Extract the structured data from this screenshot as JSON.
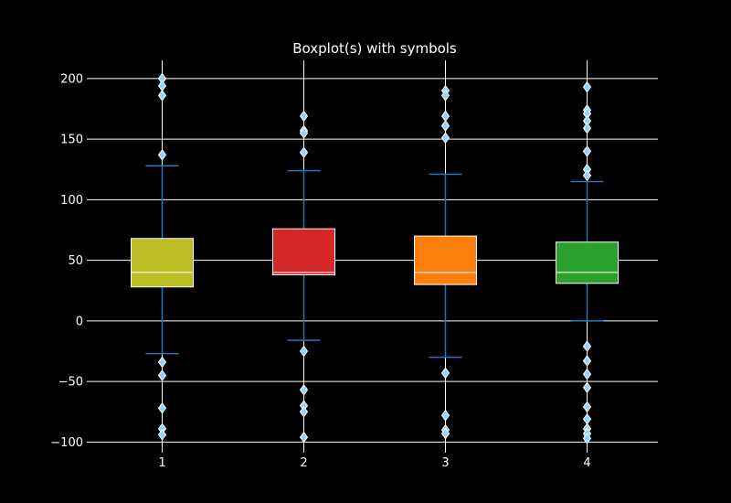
{
  "chart_data": {
    "type": "box",
    "title": "Boxplot(s) with symbols",
    "xlabel": "",
    "ylabel": "",
    "categories": [
      "1",
      "2",
      "3",
      "4"
    ],
    "ylim": [
      -105,
      215
    ],
    "xlim": [
      0.5,
      4.5
    ],
    "yticks": [
      -100,
      -50,
      0,
      50,
      100,
      150,
      200
    ],
    "ytick_labels": [
      "−100",
      "−50",
      "0",
      "50",
      "100",
      "150",
      "200"
    ],
    "grid": "horizontal",
    "series": [
      {
        "category": "1",
        "color": "#bcbd22",
        "q1": 28,
        "median": 40,
        "q3": 68,
        "whisker_low": -27,
        "whisker_high": 128,
        "fliers": [
          200,
          194,
          186,
          137,
          -34,
          -45,
          -72,
          -89,
          -94
        ]
      },
      {
        "category": "2",
        "color": "#d62728",
        "q1": 38,
        "median": 40,
        "q3": 76,
        "whisker_low": -16,
        "whisker_high": 124,
        "fliers": [
          169,
          157,
          155,
          139,
          -25,
          -57,
          -70,
          -75,
          -96
        ]
      },
      {
        "category": "3",
        "color": "#ff7f0e",
        "q1": 30,
        "median": 40,
        "q3": 70,
        "whisker_low": -30,
        "whisker_high": 121,
        "fliers": [
          190,
          186,
          169,
          161,
          151,
          -43,
          -78,
          -90,
          -93
        ]
      },
      {
        "category": "4",
        "color": "#2ca02c",
        "q1": 31,
        "median": 40,
        "q3": 65,
        "whisker_low": 0,
        "whisker_high": 115,
        "fliers": [
          193,
          174,
          171,
          165,
          159,
          140,
          125,
          120,
          -21,
          -33,
          -44,
          -55,
          -71,
          -81,
          -89,
          -93,
          -97
        ]
      }
    ]
  },
  "colors": {
    "background": "#000000",
    "axis": "#ffffff",
    "grid": "#ffffff",
    "whisker": "#1f77b4",
    "flier_fill": "#8fd3ff",
    "flier_edge": "#ffffff",
    "median": "#ffffff",
    "box_edge": "#ffffff"
  }
}
